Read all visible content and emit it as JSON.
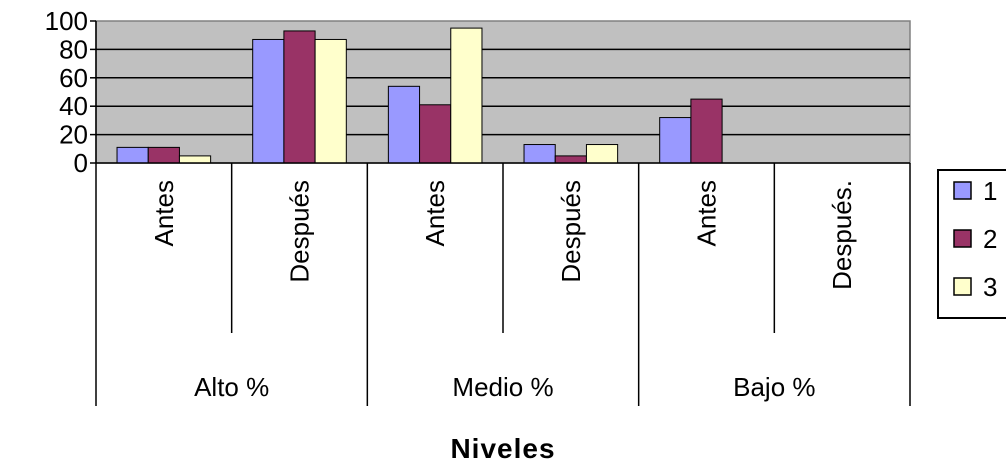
{
  "chart_data": {
    "type": "bar",
    "title": "",
    "xlabel": "Niveles",
    "ylabel": "",
    "ylim": [
      0,
      100
    ],
    "yticks": [
      "0",
      "20",
      "40",
      "60",
      "80",
      "100"
    ],
    "grid": true,
    "legend_position": "right",
    "plot_background": "#c0c0c0",
    "groups": [
      {
        "label": "Alto %",
        "categories": [
          "Antes",
          "Después"
        ]
      },
      {
        "label": "Medio %",
        "categories": [
          "Antes",
          "Después"
        ]
      },
      {
        "label": "Bajo %",
        "categories": [
          "Antes",
          "Después."
        ]
      }
    ],
    "categories": [
      "Antes",
      "Después",
      "Antes",
      "Después",
      "Antes",
      "Después."
    ],
    "series": [
      {
        "name": "1",
        "color": "#9999ff",
        "values": [
          11,
          87,
          54,
          13,
          32,
          0
        ]
      },
      {
        "name": "2",
        "color": "#993366",
        "values": [
          11,
          93,
          41,
          5,
          45,
          0
        ]
      },
      {
        "name": "3",
        "color": "#ffffcc",
        "values": [
          5,
          87,
          95,
          13,
          0,
          0
        ]
      }
    ]
  }
}
